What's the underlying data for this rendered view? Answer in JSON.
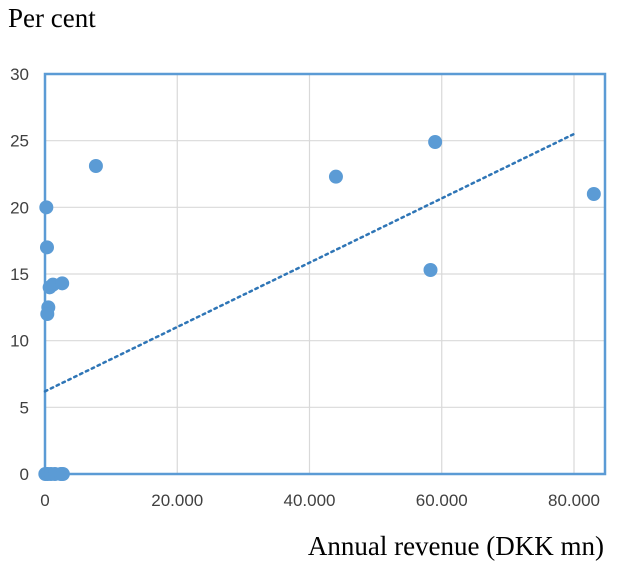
{
  "chart_data": {
    "type": "scatter",
    "title": "",
    "ylabel": "Per cent",
    "xlabel": "Annual revenue (DKK mn)",
    "xlim": [
      0,
      85000
    ],
    "ylim": [
      0,
      30
    ],
    "x_ticks": [
      {
        "value": 0,
        "label": "0"
      },
      {
        "value": 20000,
        "label": "20.000"
      },
      {
        "value": 40000,
        "label": "40.000"
      },
      {
        "value": 60000,
        "label": "60.000"
      },
      {
        "value": 80000,
        "label": "80.000"
      }
    ],
    "y_ticks": [
      {
        "value": 0,
        "label": "0"
      },
      {
        "value": 5,
        "label": "5"
      },
      {
        "value": 10,
        "label": "10"
      },
      {
        "value": 15,
        "label": "15"
      },
      {
        "value": 20,
        "label": "20"
      },
      {
        "value": 25,
        "label": "25"
      },
      {
        "value": 30,
        "label": "30"
      }
    ],
    "grid": true,
    "marker_color": "#5b9bd5",
    "trendline": {
      "style": "dotted",
      "color": "#2e75b6",
      "from": [
        0,
        6.2
      ],
      "to": [
        80000,
        25.5
      ]
    },
    "points": [
      {
        "x": 200,
        "y": 20.0
      },
      {
        "x": 300,
        "y": 17.0
      },
      {
        "x": 500,
        "y": 12.5
      },
      {
        "x": 350,
        "y": 12.0
      },
      {
        "x": 700,
        "y": 14.0
      },
      {
        "x": 1200,
        "y": 14.2
      },
      {
        "x": 2600,
        "y": 14.3
      },
      {
        "x": 7700,
        "y": 23.1
      },
      {
        "x": 44000,
        "y": 22.3
      },
      {
        "x": 58300,
        "y": 15.3
      },
      {
        "x": 59000,
        "y": 24.9
      },
      {
        "x": 83000,
        "y": 21.0
      },
      {
        "x": 50,
        "y": 0
      },
      {
        "x": 400,
        "y": 0
      },
      {
        "x": 900,
        "y": 0
      },
      {
        "x": 1500,
        "y": 0
      },
      {
        "x": 2400,
        "y": 0
      },
      {
        "x": 2700,
        "y": 0
      }
    ]
  }
}
